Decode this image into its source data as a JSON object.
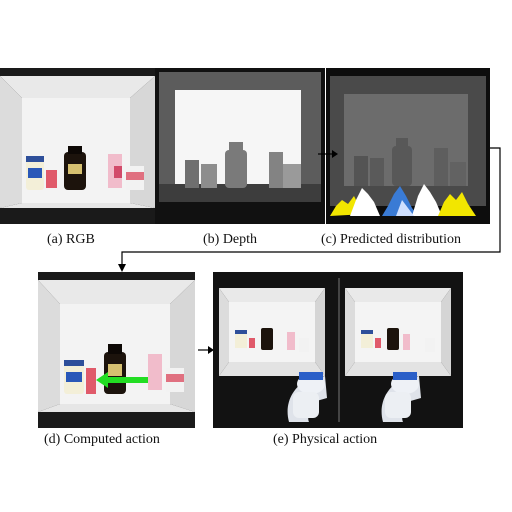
{
  "figure": {
    "panels": [
      {
        "id": "a",
        "caption": "(a) RGB"
      },
      {
        "id": "b",
        "caption": "(b) Depth"
      },
      {
        "id": "c",
        "caption": "(c) Predicted distribution"
      },
      {
        "id": "d",
        "caption": "(d) Computed action"
      },
      {
        "id": "e",
        "caption": "(e) Physical action"
      }
    ],
    "colors": {
      "action_arrow": "#22dd22",
      "flow_arrow": "#000000",
      "distribution_blue": "#3a7bd5",
      "distribution_yellow": "#f2e600",
      "distribution_white": "#ffffff"
    }
  }
}
